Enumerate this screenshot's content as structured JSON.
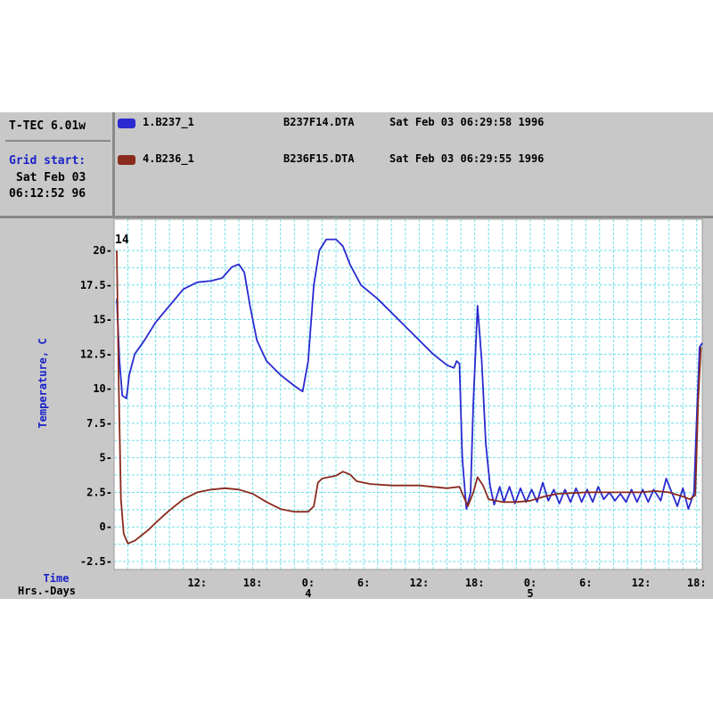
{
  "header": {
    "app_title": "T-TEC 6.01w",
    "grid_start_label": "Grid start:",
    "grid_start_date": "Sat Feb 03",
    "grid_start_time": "06:12:52 96"
  },
  "legend": [
    {
      "name": "1.B237_1",
      "file": "B237F14.DTA",
      "timestamp": "Sat Feb 03 06:29:58 1996",
      "color": "#2a2ad0"
    },
    {
      "name": "4.B236_1",
      "file": "B236F15.DTA",
      "timestamp": "Sat Feb 03 06:29:55 1996",
      "color": "#8b2a1e"
    }
  ],
  "chart_data": {
    "type": "line",
    "ylabel": "Temperature, C",
    "xlabel": "Time",
    "xlabel2": "Hrs.-Days",
    "corner_label": "14",
    "ylim": [
      -2.5,
      20
    ],
    "y_ticks": [
      "20-",
      "17.5-",
      "15-",
      "12.5-",
      "10-",
      "7.5-",
      "5-",
      "2.5-",
      "0-",
      "-2.5-"
    ],
    "x_range_hours": [
      6.2,
      48.4
    ],
    "x_ticks": [
      {
        "hour": 12,
        "label": "12:"
      },
      {
        "hour": 16,
        "label": "18:"
      },
      {
        "hour": 20,
        "label": "0:",
        "sub": "4"
      },
      {
        "hour": 24,
        "label": "6:"
      },
      {
        "hour": 28,
        "label": "12:"
      },
      {
        "hour": 32,
        "label": "18:"
      },
      {
        "hour": 36,
        "label": "0:",
        "sub": "5"
      },
      {
        "hour": 40,
        "label": "6:"
      },
      {
        "hour": 44,
        "label": "12:"
      },
      {
        "hour": 48,
        "label": "18:"
      }
    ],
    "grid": true,
    "series": [
      {
        "name": "1.B237_1",
        "color": "#2a2ad0",
        "points": [
          [
            6.2,
            16.5
          ],
          [
            6.4,
            12.0
          ],
          [
            6.6,
            9.5
          ],
          [
            6.9,
            9.3
          ],
          [
            7.1,
            11.0
          ],
          [
            7.5,
            12.5
          ],
          [
            8.2,
            13.5
          ],
          [
            9.0,
            14.8
          ],
          [
            10.0,
            16.0
          ],
          [
            11.0,
            17.2
          ],
          [
            12.0,
            17.7
          ],
          [
            13.0,
            17.8
          ],
          [
            13.8,
            18.0
          ],
          [
            14.5,
            18.8
          ],
          [
            15.0,
            19.0
          ],
          [
            15.4,
            18.4
          ],
          [
            15.8,
            16.0
          ],
          [
            16.3,
            13.5
          ],
          [
            17.0,
            12.0
          ],
          [
            18.0,
            11.0
          ],
          [
            19.0,
            10.2
          ],
          [
            19.6,
            9.8
          ],
          [
            20.0,
            12.0
          ],
          [
            20.4,
            17.5
          ],
          [
            20.8,
            20.0
          ],
          [
            21.3,
            20.8
          ],
          [
            22.0,
            20.8
          ],
          [
            22.5,
            20.3
          ],
          [
            23.0,
            19.0
          ],
          [
            23.8,
            17.5
          ],
          [
            25.0,
            16.5
          ],
          [
            26.0,
            15.5
          ],
          [
            27.0,
            14.5
          ],
          [
            28.0,
            13.5
          ],
          [
            29.0,
            12.5
          ],
          [
            30.0,
            11.7
          ],
          [
            30.5,
            11.5
          ],
          [
            30.7,
            12.0
          ],
          [
            30.9,
            11.8
          ],
          [
            31.1,
            5.0
          ],
          [
            31.4,
            1.3
          ],
          [
            31.7,
            2.5
          ],
          [
            31.9,
            9.0
          ],
          [
            32.2,
            16.0
          ],
          [
            32.5,
            12.0
          ],
          [
            32.8,
            6.0
          ],
          [
            33.1,
            3.0
          ],
          [
            33.4,
            1.6
          ],
          [
            33.8,
            2.9
          ],
          [
            34.1,
            1.8
          ],
          [
            34.5,
            2.9
          ],
          [
            34.9,
            1.7
          ],
          [
            35.3,
            2.8
          ],
          [
            35.7,
            1.8
          ],
          [
            36.1,
            2.7
          ],
          [
            36.5,
            1.8
          ],
          [
            36.9,
            3.2
          ],
          [
            37.3,
            1.9
          ],
          [
            37.7,
            2.7
          ],
          [
            38.1,
            1.7
          ],
          [
            38.5,
            2.7
          ],
          [
            38.9,
            1.8
          ],
          [
            39.3,
            2.8
          ],
          [
            39.7,
            1.8
          ],
          [
            40.1,
            2.7
          ],
          [
            40.5,
            1.8
          ],
          [
            40.9,
            2.9
          ],
          [
            41.3,
            2.0
          ],
          [
            41.7,
            2.5
          ],
          [
            42.1,
            1.9
          ],
          [
            42.5,
            2.4
          ],
          [
            42.9,
            1.8
          ],
          [
            43.3,
            2.7
          ],
          [
            43.7,
            1.8
          ],
          [
            44.1,
            2.7
          ],
          [
            44.5,
            1.8
          ],
          [
            44.9,
            2.7
          ],
          [
            45.4,
            1.9
          ],
          [
            45.8,
            3.5
          ],
          [
            46.2,
            2.5
          ],
          [
            46.6,
            1.5
          ],
          [
            47.0,
            2.8
          ],
          [
            47.4,
            1.3
          ],
          [
            47.8,
            2.5
          ],
          [
            48.0,
            8.0
          ],
          [
            48.2,
            13.0
          ],
          [
            48.4,
            13.3
          ]
        ]
      },
      {
        "name": "4.B236_1",
        "color": "#8b2a1e",
        "points": [
          [
            6.2,
            20.0
          ],
          [
            6.35,
            10.0
          ],
          [
            6.5,
            2.0
          ],
          [
            6.7,
            -0.5
          ],
          [
            7.0,
            -1.2
          ],
          [
            7.5,
            -1.0
          ],
          [
            8.0,
            -0.6
          ],
          [
            8.5,
            -0.2
          ],
          [
            9.0,
            0.3
          ],
          [
            10.0,
            1.2
          ],
          [
            11.0,
            2.0
          ],
          [
            12.0,
            2.5
          ],
          [
            13.0,
            2.7
          ],
          [
            14.0,
            2.8
          ],
          [
            15.0,
            2.7
          ],
          [
            16.0,
            2.4
          ],
          [
            17.0,
            1.8
          ],
          [
            18.0,
            1.3
          ],
          [
            19.0,
            1.1
          ],
          [
            20.0,
            1.1
          ],
          [
            20.4,
            1.5
          ],
          [
            20.7,
            3.2
          ],
          [
            21.0,
            3.5
          ],
          [
            22.0,
            3.7
          ],
          [
            22.5,
            4.0
          ],
          [
            23.0,
            3.8
          ],
          [
            23.5,
            3.3
          ],
          [
            24.5,
            3.1
          ],
          [
            26.0,
            3.0
          ],
          [
            28.0,
            3.0
          ],
          [
            30.0,
            2.8
          ],
          [
            30.9,
            2.9
          ],
          [
            31.2,
            2.2
          ],
          [
            31.5,
            1.5
          ],
          [
            31.9,
            2.5
          ],
          [
            32.2,
            3.6
          ],
          [
            32.6,
            3.0
          ],
          [
            33.0,
            2.0
          ],
          [
            34.0,
            1.8
          ],
          [
            35.0,
            1.8
          ],
          [
            36.0,
            1.9
          ],
          [
            37.0,
            2.2
          ],
          [
            38.0,
            2.4
          ],
          [
            40.0,
            2.5
          ],
          [
            42.0,
            2.5
          ],
          [
            44.0,
            2.5
          ],
          [
            45.0,
            2.6
          ],
          [
            46.0,
            2.5
          ],
          [
            47.0,
            2.2
          ],
          [
            47.5,
            2.0
          ],
          [
            47.9,
            2.3
          ],
          [
            48.1,
            9.0
          ],
          [
            48.3,
            13.0
          ]
        ]
      }
    ]
  }
}
